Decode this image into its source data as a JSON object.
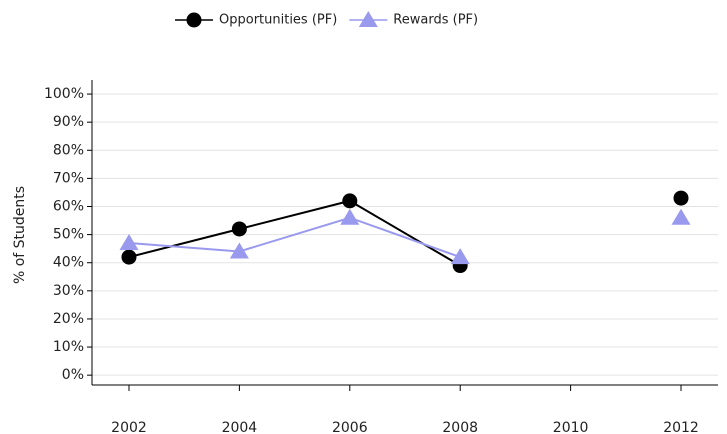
{
  "chart_data": {
    "type": "line",
    "y_label": "% of Students",
    "x": [
      2002,
      2004,
      2006,
      2008,
      2010,
      2012
    ],
    "series": [
      {
        "name": "Opportunities (PF)",
        "color": "#000000",
        "marker": "circle",
        "values": [
          42,
          52,
          62,
          39,
          null,
          63
        ]
      },
      {
        "name": "Rewards (PF)",
        "color": "#9999ee",
        "marker": "triangle",
        "values": [
          47,
          44,
          56,
          42,
          null,
          56
        ]
      }
    ],
    "xlim": [
      2001.33,
      2012.67
    ],
    "xticks": [
      2002,
      2004,
      2006,
      2008,
      2010,
      2012
    ],
    "ylim": [
      -3.5,
      105
    ],
    "yticks": [
      {
        "value": 0,
        "label": "0%"
      },
      {
        "value": 10,
        "label": "10%"
      },
      {
        "value": 20,
        "label": "20%"
      },
      {
        "value": 30,
        "label": "30%"
      },
      {
        "value": 40,
        "label": "40%"
      },
      {
        "value": 50,
        "label": "50%"
      },
      {
        "value": 60,
        "label": "60%"
      },
      {
        "value": 70,
        "label": "70%"
      },
      {
        "value": 80,
        "label": "80%"
      },
      {
        "value": 90,
        "label": "90%"
      },
      {
        "value": 100,
        "label": "100%"
      }
    ],
    "grid": true,
    "legend": "top"
  }
}
